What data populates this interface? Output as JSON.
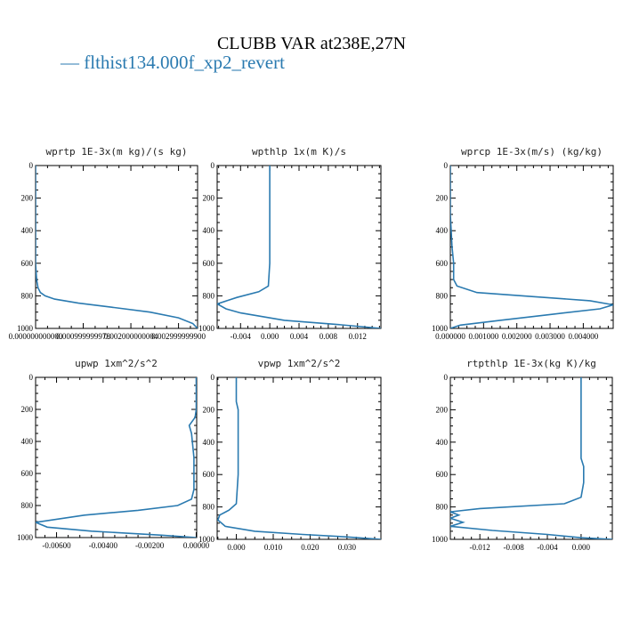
{
  "title": "CLUBB VAR at238E,27N",
  "legend": {
    "label": "— flthist134.000f_xp2_revert",
    "color": "#2a7ab0"
  },
  "chart_data": [
    {
      "type": "line",
      "title": "wprtp  1E-3x(m kg)/(s kg)",
      "xlim": [
        0,
        0.0034
      ],
      "ylim": [
        1000,
        0
      ],
      "xticks": [
        0,
        0.001,
        0.002,
        0.003
      ],
      "xtick_labels": [
        "0.000000000000",
        "0.000999999978",
        "0.002000000004",
        "0.002999999900"
      ],
      "yticks": [
        0,
        200,
        400,
        600,
        800,
        1000
      ],
      "series": [
        {
          "x": [
            0,
            0,
            0,
            2e-05,
            5e-05,
            0.0001,
            0.0002,
            0.0004,
            0.0009,
            0.0016,
            0.0024,
            0.003,
            0.0033,
            0.0034
          ],
          "y": [
            0,
            300,
            600,
            700,
            750,
            780,
            800,
            820,
            845,
            870,
            900,
            935,
            970,
            1000
          ]
        }
      ]
    },
    {
      "type": "line",
      "title": "wpthlp  1x(m K)/s",
      "xlim": [
        -0.0072,
        0.0152
      ],
      "ylim": [
        1000,
        0
      ],
      "xticks": [
        -0.004,
        0,
        0.004,
        0.008,
        0.012
      ],
      "xtick_labels": [
        "-0.004",
        "0.000",
        "0.004",
        "0.008",
        "0.012"
      ],
      "yticks": [
        0,
        200,
        400,
        600,
        800,
        1000
      ],
      "series": [
        {
          "x": [
            0,
            0,
            0,
            -0.0002,
            -0.0015,
            -0.0045,
            -0.0072,
            -0.006,
            -0.004,
            0.002,
            0.009,
            0.0152
          ],
          "y": [
            0,
            300,
            600,
            740,
            775,
            810,
            850,
            880,
            905,
            950,
            975,
            1000
          ]
        }
      ]
    },
    {
      "type": "line",
      "title": "wprcp  1E-3x(m/s) (kg/kg)",
      "xlim": [
        0,
        0.0049
      ],
      "ylim": [
        1000,
        0
      ],
      "xticks": [
        0,
        0.001,
        0.002,
        0.003,
        0.004
      ],
      "xtick_labels": [
        "0.000000",
        "0.001000",
        "0.002000",
        "0.003000",
        "0.004000"
      ],
      "yticks": [
        0,
        200,
        400,
        600,
        800,
        1000
      ],
      "series": [
        {
          "x": [
            0,
            0,
            5e-05,
            0.0001,
            0.0001,
            0.0002,
            0.0008,
            0.0025,
            0.0042,
            0.0049,
            0.0045,
            0.003,
            0.0015,
            0.0003,
            0
          ],
          "y": [
            0,
            300,
            500,
            600,
            700,
            740,
            780,
            805,
            830,
            855,
            880,
            915,
            950,
            980,
            1000
          ]
        }
      ]
    },
    {
      "type": "line",
      "title": "upwp  1xm^2/s^2",
      "xlim": [
        -0.0069,
        2e-05
      ],
      "ylim": [
        1000,
        0
      ],
      "xticks": [
        -0.006,
        -0.004,
        -0.002,
        0
      ],
      "xtick_labels": [
        "-0.00600",
        "-0.00400",
        "-0.00200",
        "0.00000"
      ],
      "yticks": [
        0,
        200,
        400,
        600,
        800,
        1000
      ],
      "series": [
        {
          "x": [
            0,
            0,
            -5e-05,
            -0.0003,
            -0.0002,
            -0.0001,
            -0.0001,
            -0.0002,
            -0.0008,
            -0.0025,
            -0.0048,
            -0.0069,
            -0.0064,
            -0.0045,
            -0.0015,
            0
          ],
          "y": [
            0,
            200,
            250,
            300,
            350,
            500,
            700,
            760,
            800,
            830,
            860,
            905,
            935,
            960,
            985,
            1000
          ]
        }
      ]
    },
    {
      "type": "line",
      "title": "vpwp  1xm^2/s^2",
      "xlim": [
        -0.0052,
        0.0392
      ],
      "ylim": [
        1000,
        0
      ],
      "xticks": [
        0,
        0.01,
        0.02,
        0.03
      ],
      "xtick_labels": [
        "0.000",
        "0.010",
        "0.020",
        "0.030"
      ],
      "yticks": [
        0,
        200,
        400,
        600,
        800,
        1000
      ],
      "series": [
        {
          "x": [
            0,
            0,
            0.0005,
            0.0005,
            0,
            -0.002,
            -0.0045,
            -0.005,
            -0.003,
            0.005,
            0.018,
            0.03,
            0.0392
          ],
          "y": [
            0,
            150,
            200,
            600,
            780,
            820,
            850,
            880,
            920,
            950,
            970,
            985,
            1000
          ]
        }
      ]
    },
    {
      "type": "line",
      "title": "rtpthlp  1E-3x(kg K)/kg",
      "xlim": [
        -0.0155,
        0.0037
      ],
      "ylim": [
        1000,
        0
      ],
      "xticks": [
        -0.012,
        -0.008,
        -0.004,
        0
      ],
      "xtick_labels": [
        "-0.012",
        "-0.008",
        "-0.004",
        "0.000"
      ],
      "yticks": [
        0,
        200,
        400,
        600,
        800,
        1000
      ],
      "series": [
        {
          "x": [
            0,
            0,
            0.0003,
            0.0003,
            0,
            -0.002,
            -0.012,
            -0.0155,
            -0.0145,
            -0.0155,
            -0.014,
            -0.0155,
            -0.0105,
            -0.004,
            0,
            0.0037
          ],
          "y": [
            0,
            500,
            550,
            650,
            740,
            780,
            810,
            830,
            850,
            870,
            895,
            920,
            945,
            970,
            990,
            1000
          ]
        }
      ]
    }
  ]
}
